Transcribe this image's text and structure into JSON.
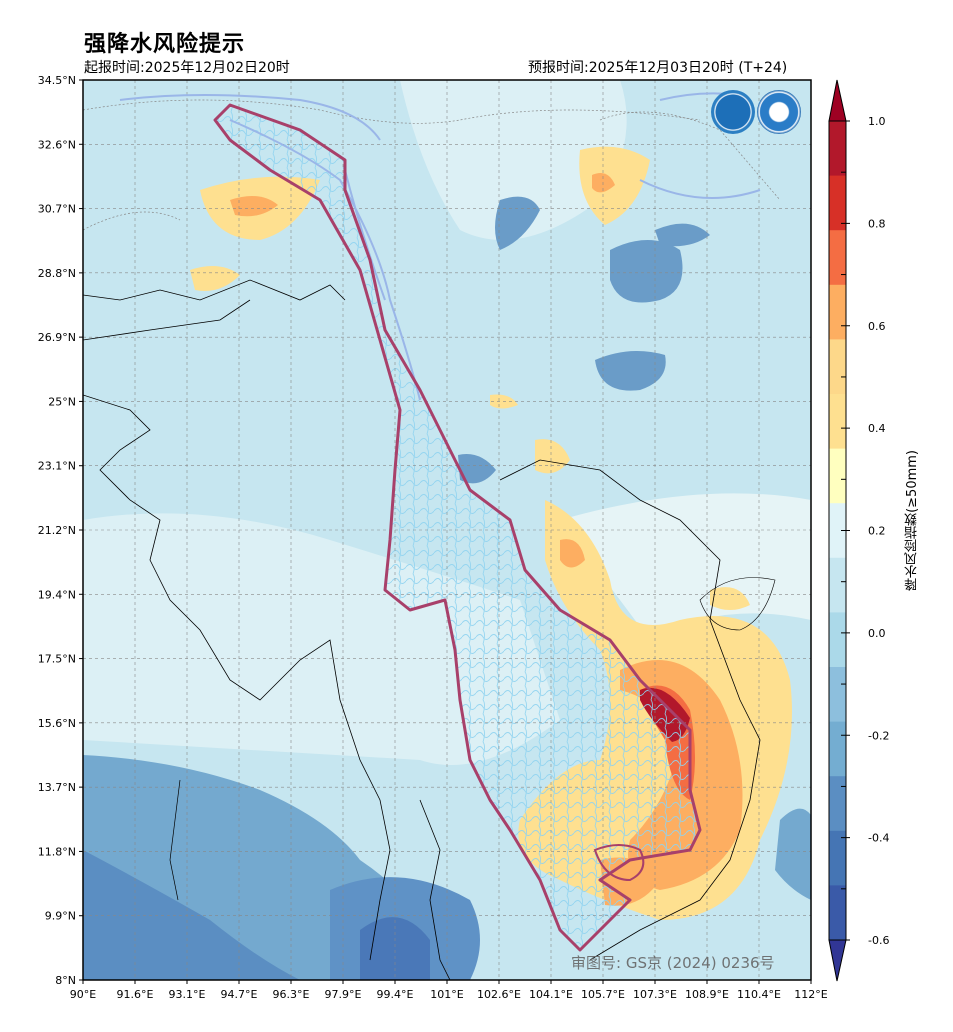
{
  "header": {
    "title": "强降水风险提示",
    "issue_time": "起报时间:2025年12月02日20时",
    "valid_time": "预报时间:2025年12月03日20时 (T+24)"
  },
  "axes": {
    "lat_labels": [
      "34.5°N",
      "32.6°N",
      "30.7°N",
      "28.8°N",
      "26.9°N",
      "25°N",
      "23.1°N",
      "21.2°N",
      "19.4°N",
      "17.5°N",
      "15.6°N",
      "13.7°N",
      "11.8°N",
      "9.9°N",
      "8°N"
    ],
    "lon_labels": [
      "90°E",
      "91.6°E",
      "93.1°E",
      "94.7°E",
      "96.3°E",
      "97.9°E",
      "99.4°E",
      "101°E",
      "102.6°E",
      "104.1°E",
      "105.7°E",
      "107.3°E",
      "108.9°E",
      "110.4°E",
      "112°E"
    ]
  },
  "colorbar": {
    "title": "降水风险指数(≥50mm)",
    "tick_labels": [
      "1.0",
      "0.8",
      "0.6",
      "0.4",
      "0.2",
      "0.0",
      "-0.2",
      "-0.4",
      "-0.6"
    ],
    "colors": [
      "#b2182b",
      "#d73027",
      "#f46d43",
      "#fdae61",
      "#fdd88a",
      "#fee090",
      "#ffffbf",
      "#e0f3f8",
      "#c6e6f0",
      "#abd9e9",
      "#8dbfdd",
      "#74add1",
      "#5b8ec2",
      "#4575b4",
      "#3a5aa8"
    ]
  },
  "logos": {
    "left": "wmo-logo",
    "right": "cma-logo"
  },
  "approval_number": "审图号: GS京 (2024) 0236号"
}
